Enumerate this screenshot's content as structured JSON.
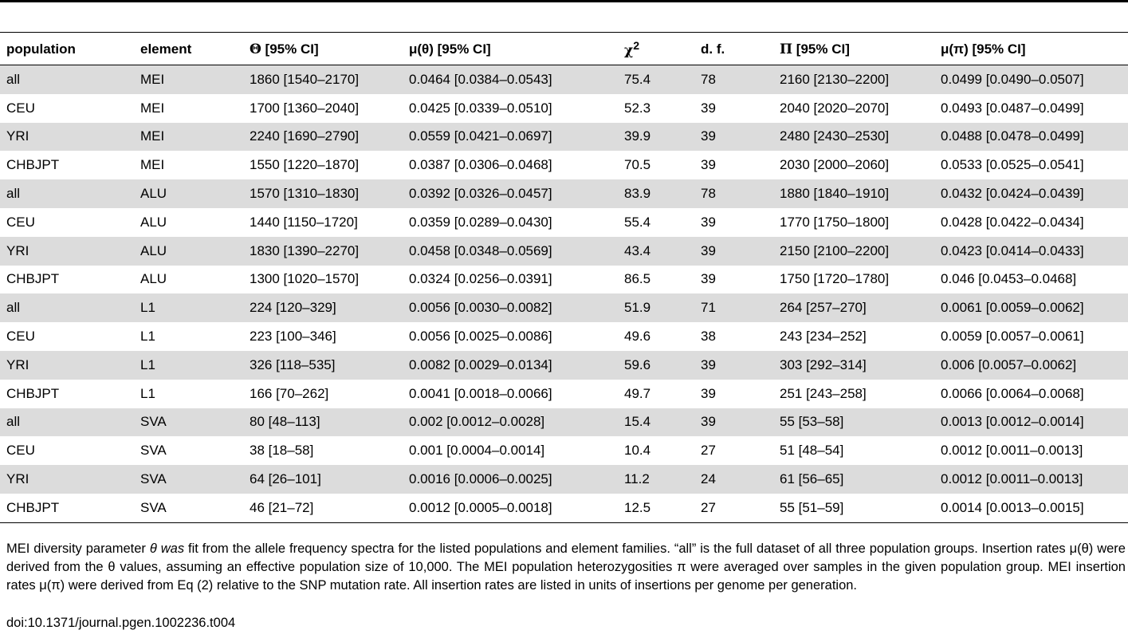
{
  "table": {
    "headers": {
      "population": "population",
      "element": "element",
      "theta_sym": "Θ",
      "theta_rest": " [95% CI]",
      "mu_theta": "μ(θ) [95% CI]",
      "chi_base": "χ",
      "chi_sup": "2",
      "df": "d. f.",
      "pi_sym": "Π",
      "pi_rest": " [95% CI]",
      "mu_pi": "μ(π) [95% CI]"
    },
    "rows": [
      {
        "population": "all",
        "element": "MEI",
        "theta": "1860 [1540–2170]",
        "mu_theta": "0.0464 [0.0384–0.0543]",
        "chi2": "75.4",
        "df": "78",
        "pi": "2160 [2130–2200]",
        "mu_pi": "0.0499 [0.0490–0.0507]",
        "shaded": true
      },
      {
        "population": "CEU",
        "element": "MEI",
        "theta": "1700 [1360–2040]",
        "mu_theta": "0.0425 [0.0339–0.0510]",
        "chi2": "52.3",
        "df": "39",
        "pi": "2040 [2020–2070]",
        "mu_pi": "0.0493 [0.0487–0.0499]",
        "shaded": false
      },
      {
        "population": "YRI",
        "element": "MEI",
        "theta": "2240 [1690–2790]",
        "mu_theta": "0.0559 [0.0421–0.0697]",
        "chi2": "39.9",
        "df": "39",
        "pi": "2480 [2430–2530]",
        "mu_pi": "0.0488 [0.0478–0.0499]",
        "shaded": true
      },
      {
        "population": "CHBJPT",
        "element": "MEI",
        "theta": "1550 [1220–1870]",
        "mu_theta": "0.0387 [0.0306–0.0468]",
        "chi2": "70.5",
        "df": "39",
        "pi": "2030 [2000–2060]",
        "mu_pi": "0.0533 [0.0525–0.0541]",
        "shaded": false
      },
      {
        "population": "all",
        "element": "ALU",
        "theta": "1570 [1310–1830]",
        "mu_theta": "0.0392 [0.0326–0.0457]",
        "chi2": "83.9",
        "df": "78",
        "pi": "1880 [1840–1910]",
        "mu_pi": "0.0432 [0.0424–0.0439]",
        "shaded": true
      },
      {
        "population": "CEU",
        "element": "ALU",
        "theta": "1440 [1150–1720]",
        "mu_theta": "0.0359 [0.0289–0.0430]",
        "chi2": "55.4",
        "df": "39",
        "pi": "1770 [1750–1800]",
        "mu_pi": "0.0428 [0.0422–0.0434]",
        "shaded": false
      },
      {
        "population": "YRI",
        "element": "ALU",
        "theta": "1830 [1390–2270]",
        "mu_theta": "0.0458 [0.0348–0.0569]",
        "chi2": "43.4",
        "df": "39",
        "pi": "2150 [2100–2200]",
        "mu_pi": "0.0423 [0.0414–0.0433]",
        "shaded": true
      },
      {
        "population": "CHBJPT",
        "element": "ALU",
        "theta": "1300 [1020–1570]",
        "mu_theta": "0.0324 [0.0256–0.0391]",
        "chi2": "86.5",
        "df": "39",
        "pi": "1750 [1720–1780]",
        "mu_pi": "0.046 [0.0453–0.0468]",
        "shaded": false
      },
      {
        "population": "all",
        "element": "L1",
        "theta": "224 [120–329]",
        "mu_theta": "0.0056 [0.0030–0.0082]",
        "chi2": "51.9",
        "df": "71",
        "pi": "264 [257–270]",
        "mu_pi": "0.0061 [0.0059–0.0062]",
        "shaded": true
      },
      {
        "population": "CEU",
        "element": "L1",
        "theta": "223 [100–346]",
        "mu_theta": "0.0056 [0.0025–0.0086]",
        "chi2": "49.6",
        "df": "38",
        "pi": "243 [234–252]",
        "mu_pi": "0.0059 [0.0057–0.0061]",
        "shaded": false
      },
      {
        "population": "YRI",
        "element": "L1",
        "theta": "326 [118–535]",
        "mu_theta": "0.0082 [0.0029–0.0134]",
        "chi2": "59.6",
        "df": "39",
        "pi": "303 [292–314]",
        "mu_pi": "0.006 [0.0057–0.0062]",
        "shaded": true
      },
      {
        "population": "CHBJPT",
        "element": "L1",
        "theta": "166 [70–262]",
        "mu_theta": "0.0041 [0.0018–0.0066]",
        "chi2": "49.7",
        "df": "39",
        "pi": "251 [243–258]",
        "mu_pi": "0.0066 [0.0064–0.0068]",
        "shaded": false
      },
      {
        "population": "all",
        "element": "SVA",
        "theta": "80 [48–113]",
        "mu_theta": "0.002 [0.0012–0.0028]",
        "chi2": "15.4",
        "df": "39",
        "pi": "55 [53–58]",
        "mu_pi": "0.0013 [0.0012–0.0014]",
        "shaded": true
      },
      {
        "population": "CEU",
        "element": "SVA",
        "theta": "38 [18–58]",
        "mu_theta": "0.001 [0.0004–0.0014]",
        "chi2": "10.4",
        "df": "27",
        "pi": "51 [48–54]",
        "mu_pi": "0.0012 [0.0011–0.0013]",
        "shaded": false
      },
      {
        "population": "YRI",
        "element": "SVA",
        "theta": "64 [26–101]",
        "mu_theta": "0.0016 [0.0006–0.0025]",
        "chi2": "11.2",
        "df": "24",
        "pi": "61 [56–65]",
        "mu_pi": "0.0012 [0.0011–0.0013]",
        "shaded": true
      },
      {
        "population": "CHBJPT",
        "element": "SVA",
        "theta": "46 [21–72]",
        "mu_theta": "0.0012 [0.0005–0.0018]",
        "chi2": "12.5",
        "df": "27",
        "pi": "55 [51–59]",
        "mu_pi": "0.0014 [0.0013–0.0015]",
        "shaded": false
      }
    ]
  },
  "footnote": {
    "part1": "MEI diversity parameter ",
    "theta_italic": "θ was",
    "part2": " fit from the allele frequency spectra for the listed populations and element families. “all” is the full dataset of all three population groups. Insertion rates μ(θ) were derived from the θ values, assuming an effective population size of 10,000. The MEI population heterozygosities π were averaged over samples in the given population group. MEI insertion rates μ(π) were derived from Eq (2) relative to the SNP mutation rate. All insertion rates are listed in units of insertions per genome per generation."
  },
  "doi": "doi:10.1371/journal.pgen.1002236.t004"
}
